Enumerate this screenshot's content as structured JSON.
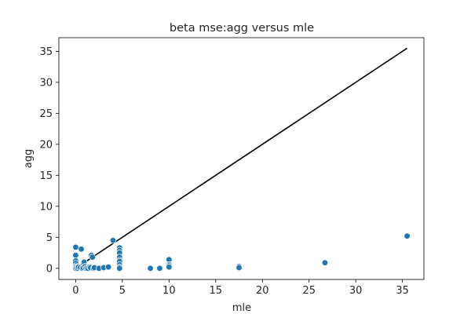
{
  "chart_data": {
    "type": "scatter",
    "title": "beta mse:agg versus mle",
    "xlabel": "mle",
    "ylabel": "agg",
    "xlim": [
      -1.8,
      37.3
    ],
    "ylim": [
      -1.8,
      37.2
    ],
    "xticks": [
      0,
      5,
      10,
      15,
      20,
      25,
      30,
      35
    ],
    "yticks": [
      0,
      5,
      10,
      15,
      20,
      25,
      30,
      35
    ],
    "grid": false,
    "point_color": "#1f77b4",
    "reference_line": {
      "from": [
        0,
        0
      ],
      "to": [
        35.5,
        35.5
      ],
      "color": "#000000"
    },
    "series": [
      {
        "x": [
          0,
          0,
          0,
          0,
          0,
          0,
          0,
          0.1,
          0.2,
          0.3,
          0.5,
          0.6,
          0.7,
          0.8,
          0.9,
          1.0,
          1.1,
          1.2,
          1.3,
          1.5,
          1.6,
          1.7,
          1.8,
          1.9,
          2.0,
          2.5,
          3.0,
          3.5,
          4.0,
          4.7,
          4.7,
          4.7,
          4.7,
          4.7,
          4.7,
          4.7,
          4.7,
          4.7,
          8.0,
          9.0,
          10.0,
          10.0,
          10.0,
          10.0,
          17.5,
          17.5,
          26.7,
          35.5
        ],
        "y": [
          3.4,
          2.1,
          1.2,
          0.8,
          0.4,
          0.2,
          0.0,
          0.1,
          0.0,
          0.2,
          0.1,
          3.1,
          0.0,
          0.1,
          1.0,
          0.3,
          0.0,
          0.1,
          0.0,
          0.2,
          0.1,
          2.1,
          1.8,
          0.0,
          0.1,
          0.0,
          0.1,
          0.2,
          4.5,
          3.3,
          2.9,
          2.5,
          1.8,
          1.3,
          1.1,
          0.6,
          0.2,
          0.0,
          0.0,
          0.0,
          1.4,
          0.6,
          0.4,
          0.2,
          0.3,
          0.1,
          0.9,
          5.2
        ]
      }
    ]
  }
}
